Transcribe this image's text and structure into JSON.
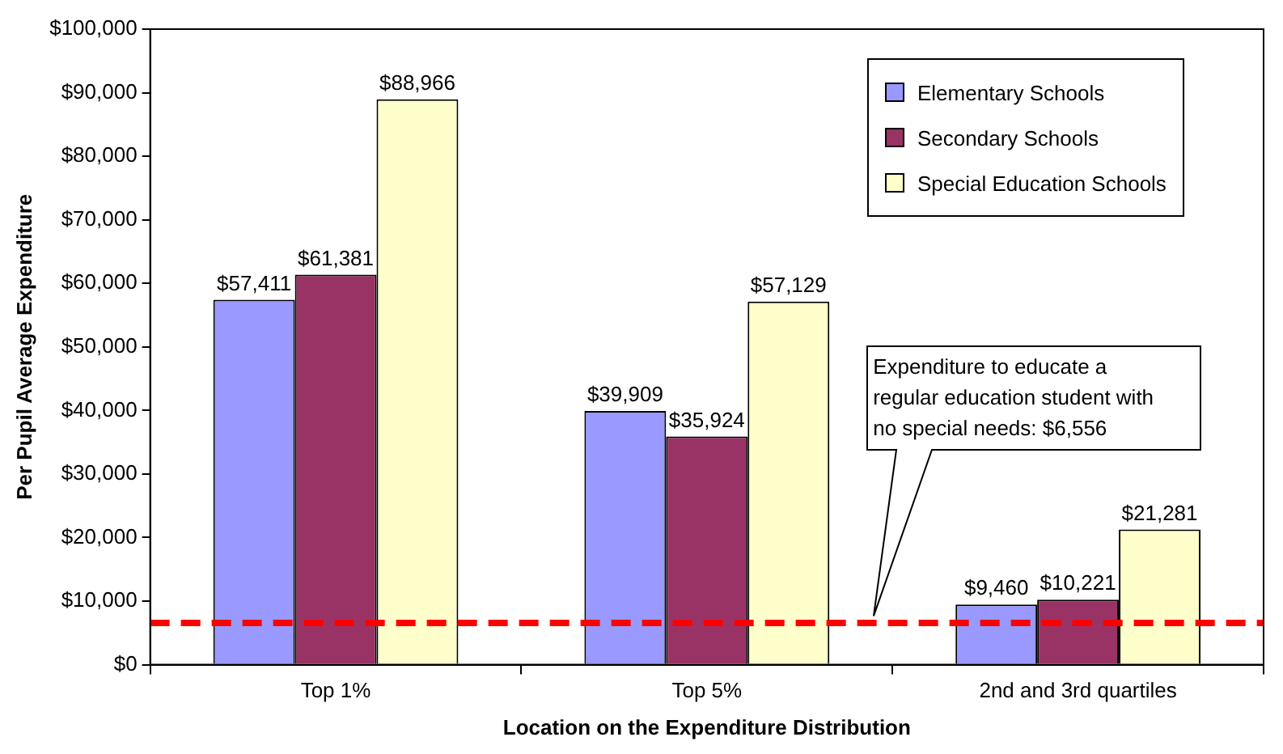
{
  "chart_data": {
    "type": "bar",
    "xlabel": "Location on the Expenditure Distribution",
    "ylabel": "Per Pupil Average Expenditure",
    "categories": [
      "Top 1%",
      "Top 5%",
      "2nd and 3rd quartiles"
    ],
    "series": [
      {
        "name": "Elementary Schools",
        "color": "#9999ff",
        "values": [
          57411,
          39909,
          9460
        ],
        "value_labels": [
          "$57,411",
          "$39,909",
          "$9,460"
        ]
      },
      {
        "name": "Secondary Schools",
        "color": "#993366",
        "values": [
          61381,
          35924,
          10221
        ],
        "value_labels": [
          "$61,381",
          "$35,924",
          "$10,221"
        ]
      },
      {
        "name": "Special Education Schools",
        "color": "#ffffcc",
        "values": [
          88966,
          57129,
          21281
        ],
        "value_labels": [
          "$88,966",
          "$57,129",
          "$21,281"
        ]
      }
    ],
    "ylim": [
      0,
      100000
    ],
    "yticks": [
      {
        "value": 0,
        "label": "$0"
      },
      {
        "value": 10000,
        "label": "$10,000"
      },
      {
        "value": 20000,
        "label": "$20,000"
      },
      {
        "value": 30000,
        "label": "$30,000"
      },
      {
        "value": 40000,
        "label": "$40,000"
      },
      {
        "value": 50000,
        "label": "$50,000"
      },
      {
        "value": 60000,
        "label": "$60,000"
      },
      {
        "value": 70000,
        "label": "$70,000"
      },
      {
        "value": 80000,
        "label": "$80,000"
      },
      {
        "value": 90000,
        "label": "$90,000"
      },
      {
        "value": 100000,
        "label": "$100,000"
      }
    ],
    "ref_lines": [
      {
        "axis": "y",
        "value": 6556,
        "color": "#ff0000",
        "line_style": "dashed"
      }
    ],
    "annotations": [
      "Expenditure to educate a regular education student with no special needs: $6,556"
    ],
    "legend": "top right",
    "grid": false
  }
}
